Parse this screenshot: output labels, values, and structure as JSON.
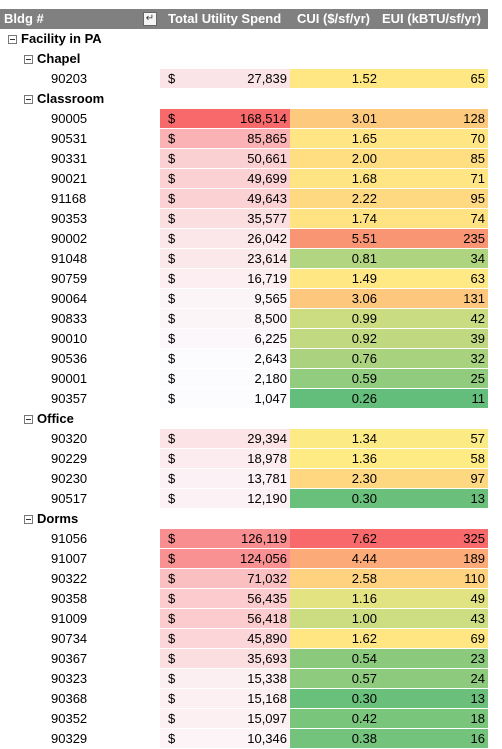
{
  "header": {
    "bldg": "Bldg #",
    "spend": "Total Utility Spend",
    "cui": "CUI ($/sf/yr)",
    "eui": "EUI (kBTU/sf/yr)"
  },
  "table": {
    "facility": "Facility in PA",
    "currency_symbol": "$",
    "groups": [
      {
        "name": "Chapel",
        "rows": [
          [
            "90203",
            "27,839",
            "1.52",
            "65"
          ]
        ]
      },
      {
        "name": "Classroom",
        "rows": [
          [
            "90005",
            "168,514",
            "3.01",
            "128"
          ],
          [
            "90531",
            "85,865",
            "1.65",
            "70"
          ],
          [
            "90331",
            "50,661",
            "2.00",
            "85"
          ],
          [
            "90021",
            "49,699",
            "1.68",
            "71"
          ],
          [
            "91168",
            "49,643",
            "2.22",
            "95"
          ],
          [
            "90353",
            "35,577",
            "1.74",
            "74"
          ],
          [
            "90002",
            "26,042",
            "5.51",
            "235"
          ],
          [
            "91048",
            "23,614",
            "0.81",
            "34"
          ],
          [
            "90759",
            "16,719",
            "1.49",
            "63"
          ],
          [
            "90064",
            "9,565",
            "3.06",
            "131"
          ],
          [
            "90833",
            "8,500",
            "0.99",
            "42"
          ],
          [
            "90010",
            "6,225",
            "0.92",
            "39"
          ],
          [
            "90536",
            "2,643",
            "0.76",
            "32"
          ],
          [
            "90001",
            "2,180",
            "0.59",
            "25"
          ],
          [
            "90357",
            "1,047",
            "0.26",
            "11"
          ]
        ]
      },
      {
        "name": "Office",
        "rows": [
          [
            "90320",
            "29,394",
            "1.34",
            "57"
          ],
          [
            "90229",
            "18,978",
            "1.36",
            "58"
          ],
          [
            "90230",
            "13,781",
            "2.30",
            "97"
          ],
          [
            "90517",
            "12,190",
            "0.30",
            "13"
          ]
        ]
      },
      {
        "name": "Dorms",
        "rows": [
          [
            "91056",
            "126,119",
            "7.62",
            "325"
          ],
          [
            "91007",
            "124,056",
            "4.44",
            "189"
          ],
          [
            "90322",
            "71,032",
            "2.58",
            "110"
          ],
          [
            "90358",
            "56,435",
            "1.16",
            "49"
          ],
          [
            "91009",
            "56,418",
            "1.00",
            "43"
          ],
          [
            "90734",
            "45,890",
            "1.62",
            "69"
          ],
          [
            "90367",
            "35,693",
            "0.54",
            "23"
          ],
          [
            "90323",
            "15,338",
            "0.57",
            "24"
          ],
          [
            "90368",
            "15,168",
            "0.30",
            "13"
          ],
          [
            "90352",
            "15,097",
            "0.42",
            "18"
          ],
          [
            "90329",
            "10,346",
            "0.38",
            "16"
          ]
        ]
      }
    ]
  }
}
